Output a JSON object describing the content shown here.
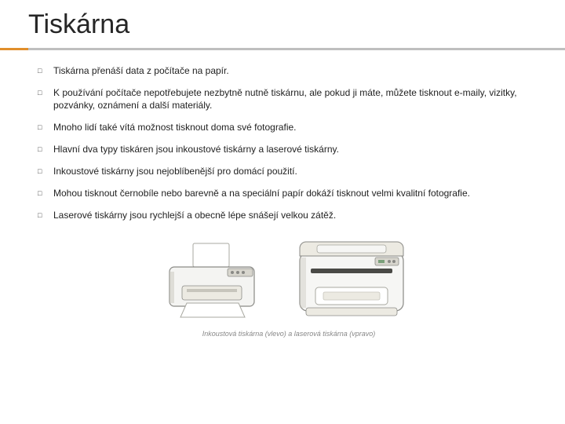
{
  "title": "Tiskárna",
  "accent": {
    "orange": "#e08e2b",
    "grey": "#bfbfbf"
  },
  "bullet_glyph": "□",
  "text_color": "#222222",
  "title_color": "#262626",
  "bullets": [
    "Tiskárna přenáší data z počítače na papír.",
    "K používání počítače nepotřebujete nezbytně nutně tiskárnu, ale pokud ji máte, můžete tisknout e-maily, vizitky, pozvánky, oznámení a další materiály.",
    "Mnoho lidí také vítá možnost tisknout doma své fotografie.",
    "Hlavní dva typy tiskáren jsou inkoustové tiskárny a laserové tiskárny.",
    " Inkoustové tiskárny jsou nejoblíbenější pro domácí použití.",
    "Mohou tisknout černobíle nebo barevně a na speciální papír dokáží tisknout velmi kvalitní fotografie.",
    "Laserové tiskárny jsou rychlejší a obecně lépe snášejí velkou zátěž."
  ],
  "caption": "Inkoustová tiskárna (vlevo) a laserová tiskárna (vpravo)",
  "figure": {
    "inkjet": {
      "body_fill": "#f4f4f2",
      "body_stroke": "#8a8a86",
      "tray_fill": "#ffffff",
      "tray_stroke": "#a8a8a0",
      "panel_fill": "#d8d6ce",
      "shade": "#c7c5bc"
    },
    "laser": {
      "body_fill": "#f6f6f4",
      "body_stroke": "#8a8a86",
      "top_fill": "#eceae2",
      "panel_fill": "#d8d6ce",
      "slot_fill": "#4a4a46",
      "tray_fill": "#ffffff",
      "shade": "#c7c5bc"
    }
  }
}
